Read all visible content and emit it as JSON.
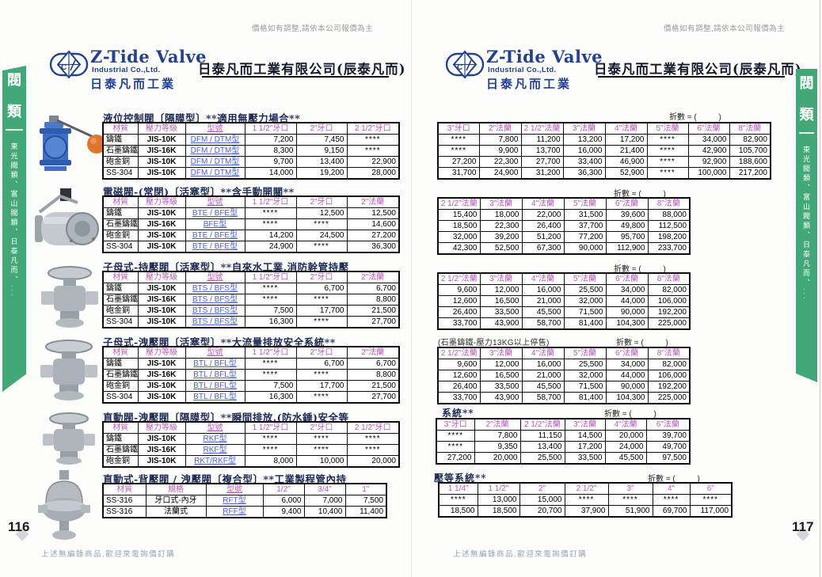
{
  "disclaimer": "價格如有調整,請依本公司報價為主",
  "logo": {
    "brand": "Z-Tide Valve",
    "company": "Industrial Co.,Ltd.",
    "brand_cn": "日泰凡而工業"
  },
  "company_title": "日泰凡而工業有限公司(辰泰凡而)",
  "sidebar": {
    "category": "閥",
    "category2": "類",
    "series": "東光閥類、富山閥類、日泰凡而、..."
  },
  "discount_label": "折數 = (          )",
  "left_page": {
    "page_number": "116",
    "footer": "上述無編錄商品,歡迎來電詢價訂購",
    "sections": [
      {
        "title": "液位控制閥〔隔膜型〕**適用無壓力場合**",
        "table": {
          "headers": [
            "材質",
            "壓力等級",
            "型號",
            "1 1/2\"牙口",
            "2\"牙口",
            "2 1/2\"牙口"
          ],
          "rows": [
            [
              "鑄鐵",
              "JIS-10K",
              "DFM / DTM型",
              "7,200",
              "7,450",
              "****"
            ],
            [
              "石墨鑄鐵",
              "JIS-16K",
              "DFM / DTM型",
              "8,300",
              "9,150",
              "****"
            ],
            [
              "砲金銅",
              "JIS-10K",
              "DFM / DTM型",
              "9,700",
              "13,400",
              "22,900"
            ],
            [
              "SS-304",
              "JIS-10K",
              "DFM / DTM型",
              "14,000",
              "19,200",
              "28,000"
            ]
          ]
        }
      },
      {
        "title": "電磁閥-(常閉)〔活塞型〕**含手動開關**",
        "table": {
          "headers": [
            "材質",
            "壓力等級",
            "型號",
            "1 1/2\"牙口",
            "2\"牙口",
            "2\"法蘭"
          ],
          "rows": [
            [
              "鑄鐵",
              "JIS-10K",
              "BTE / BFE型",
              "****",
              "12,500",
              "12,500"
            ],
            [
              "石墨鑄鐵",
              "JIS-16K",
              "BFE型",
              "****",
              "****",
              "14,600"
            ],
            [
              "砲金銅",
              "JIS-10K",
              "BTE / BFE型",
              "14,200",
              "24,500",
              "27,200"
            ],
            [
              "SS-304",
              "JIS-10K",
              "BTE / BFE型",
              "24,900",
              "****",
              "36,300"
            ]
          ]
        }
      },
      {
        "title": "子母式-持壓閥〔活塞型〕**自來水工業,消防幹管持壓",
        "table": {
          "headers": [
            "材質",
            "壓力等級",
            "型號",
            "1 1/2\"牙口",
            "2\"牙口",
            "2\"法蘭"
          ],
          "rows": [
            [
              "鑄鐵",
              "JIS-10K",
              "BTS / BFS型",
              "****",
              "6,700",
              "6,700"
            ],
            [
              "石墨鑄鐵",
              "JIS-16K",
              "BTS / BFS型",
              "****",
              "****",
              "8,800"
            ],
            [
              "砲金銅",
              "JIS-10K",
              "BTS / BFS型",
              "7,500",
              "17,700",
              "21,500"
            ],
            [
              "SS-304",
              "JIS-10K",
              "BTS / BFS型",
              "16,300",
              "****",
              "27,700"
            ]
          ]
        }
      },
      {
        "title": "子母式-洩壓閥〔活塞型〕**大流量排放安全系統**",
        "table": {
          "headers": [
            "材質",
            "壓力等級",
            "型號",
            "1 1/2\"牙口",
            "2\"牙口",
            "2\"法蘭"
          ],
          "rows": [
            [
              "鑄鐵",
              "JIS-10K",
              "BTL / BFL型",
              "****",
              "6,700",
              "6,700"
            ],
            [
              "石墨鑄鐵",
              "JIS-16K",
              "BTL / BFL型",
              "****",
              "****",
              "8,800"
            ],
            [
              "砲金銅",
              "JIS-10K",
              "BTL / BFL型",
              "7,500",
              "17,700",
              "21,500"
            ],
            [
              "SS-304",
              "JIS-10K",
              "BTL / BFL型",
              "16,300",
              "****",
              "27,700"
            ]
          ]
        }
      },
      {
        "title": "直動閥-洩壓閥〔隔膜型〕**瞬間排放.(防水錘)安全等",
        "table": {
          "headers": [
            "材質",
            "壓力等級",
            "型號",
            "1 1/2\"牙口",
            "2\"牙口",
            "2 1/2\"牙口"
          ],
          "rows": [
            [
              "鑄鐵",
              "JIS-10K",
              "RKF型",
              "****",
              "****",
              "****"
            ],
            [
              "石墨鑄鐵",
              "JIS-16K",
              "RKF型",
              "****",
              "****",
              "****"
            ],
            [
              "砲金銅",
              "JIS-10K",
              "RKT/RKF型",
              "8,000",
              "10,000",
              "20,000"
            ]
          ]
        }
      },
      {
        "title": "直動式-背壓閥 / 洩壓閥〔複合型〕**工業製程管內持",
        "table": {
          "headers": [
            "材質",
            "規格",
            "型號",
            "1/2\"",
            "3/4\"",
            "1\""
          ],
          "rows": [
            [
              "SS-316",
              "牙口式-內牙",
              "RFT型",
              "6,000",
              "7,000",
              "7,500"
            ],
            [
              "SS-316",
              "法蘭式",
              "RFF型",
              "9,400",
              "10,400",
              "11,400"
            ]
          ]
        }
      }
    ]
  },
  "right_page": {
    "page_number": "117",
    "footer": "上述無編錄商品,歡迎來電詢價訂購",
    "tables": [
      {
        "headers": [
          "3\"牙口",
          "2\"法蘭",
          "2 1/2\"法蘭",
          "3\"法蘭",
          "4\"法蘭",
          "5\"法蘭",
          "6\"法蘭",
          "8\"法蘭"
        ],
        "rows": [
          [
            "****",
            "7,800",
            "11,200",
            "13,200",
            "17,200",
            "****",
            "34,000",
            "82,900"
          ],
          [
            "****",
            "9,900",
            "13,700",
            "16,000",
            "21,400",
            "****",
            "42,900",
            "105,700"
          ],
          [
            "27,200",
            "22,300",
            "27,700",
            "33,400",
            "46,900",
            "****",
            "92,900",
            "188,600"
          ],
          [
            "31,700",
            "24,900",
            "31,200",
            "36,300",
            "52,900",
            "****",
            "100,000",
            "217,200"
          ]
        ]
      },
      {
        "headers": [
          "2 1/2\"法蘭",
          "3\"法蘭",
          "4\"法蘭",
          "5\"法蘭",
          "6\"法蘭",
          "8\"法蘭"
        ],
        "rows": [
          [
            "15,400",
            "18,000",
            "22,000",
            "31,500",
            "39,600",
            "88,000"
          ],
          [
            "18,500",
            "22,300",
            "26,400",
            "37,700",
            "49,800",
            "112,500"
          ],
          [
            "32,000",
            "39,200",
            "51,200",
            "77,200",
            "95,700",
            "198,200"
          ],
          [
            "42,300",
            "52,500",
            "67,300",
            "90,000",
            "112,900",
            "233,700"
          ]
        ]
      },
      {
        "headers": [
          "2 1/2\"法蘭",
          "3\"法蘭",
          "4\"法蘭",
          "5\"法蘭",
          "6\"法蘭",
          "8\"法蘭"
        ],
        "rows": [
          [
            "9,600",
            "12,000",
            "16,000",
            "25,500",
            "34,000",
            "82,000"
          ],
          [
            "12,600",
            "16,500",
            "21,000",
            "32,000",
            "44,000",
            "106,000"
          ],
          [
            "26,400",
            "33,500",
            "45,500",
            "71,500",
            "90,000",
            "192,200"
          ],
          [
            "33,700",
            "43,900",
            "58,700",
            "81,400",
            "104,300",
            "225,000"
          ]
        ]
      },
      {
        "note": "(石墨鑄鐵-壓力13KG以上停售)",
        "headers": [
          "2 1/2\"法蘭",
          "3\"法蘭",
          "4\"法蘭",
          "5\"法蘭",
          "6\"法蘭",
          "8\"法蘭"
        ],
        "rows": [
          [
            "9,600",
            "12,000",
            "16,000",
            "25,500",
            "34,000",
            "82,000"
          ],
          [
            "12,600",
            "16,500",
            "21,000",
            "32,000",
            "44,000",
            "106,000"
          ],
          [
            "26,400",
            "33,500",
            "45,500",
            "71,500",
            "90,000",
            "192,200"
          ],
          [
            "33,700",
            "43,900",
            "58,700",
            "81,400",
            "104,300",
            "225,000"
          ]
        ]
      },
      {
        "label": "系統**",
        "headers": [
          "3\"牙口",
          "2\"法蘭",
          "2 1/2\"法蘭",
          "3\"法蘭",
          "4\"法蘭",
          "6\"法蘭"
        ],
        "rows": [
          [
            "****",
            "7,800",
            "11,150",
            "14,500",
            "20,000",
            "39,700"
          ],
          [
            "****",
            "9,350",
            "13,400",
            "17,200",
            "24,000",
            "49,700"
          ],
          [
            "27,200",
            "20,000",
            "25,500",
            "33,500",
            "45,500",
            "97,500"
          ]
        ]
      },
      {
        "label": "壓等系統**",
        "headers": [
          "1 1/4\"",
          "1 1/2\"",
          "2\"",
          "2 1/2\"",
          "3\"",
          "4\"",
          "6\""
        ],
        "rows": [
          [
            "****",
            "13,000",
            "15,000",
            "****",
            "****",
            "****",
            "****"
          ],
          [
            "18,500",
            "18,500",
            "20,700",
            "37,900",
            "51,900",
            "69,700",
            "117,000"
          ]
        ]
      }
    ]
  }
}
